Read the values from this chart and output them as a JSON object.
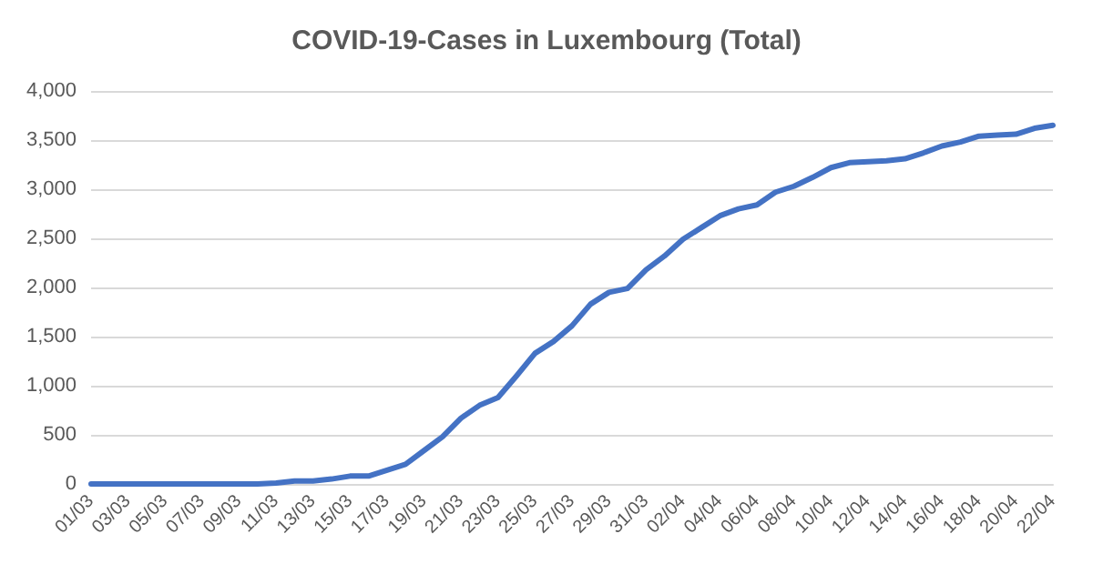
{
  "chart_data": {
    "type": "line",
    "title": "COVID-19-Cases in Luxembourg (Total)",
    "categories": [
      "01/03",
      null,
      "03/03",
      null,
      "05/03",
      null,
      "07/03",
      null,
      "09/03",
      null,
      "11/03",
      null,
      "13/03",
      null,
      "15/03",
      null,
      "17/03",
      null,
      "19/03",
      null,
      "21/03",
      null,
      "23/03",
      null,
      "25/03",
      null,
      "27/03",
      null,
      "29/03",
      null,
      "31/03",
      null,
      "02/04",
      null,
      "04/04",
      null,
      "06/04",
      null,
      "08/04",
      null,
      "10/04",
      null,
      "12/04",
      null,
      "14/04",
      null,
      "16/04",
      null,
      "18/04",
      null,
      "20/04",
      null,
      "22/04"
    ],
    "series": [
      {
        "color": "#4472c4",
        "values": [
          0,
          0,
          0,
          0,
          0,
          0,
          0,
          0,
          0,
          0,
          10,
          30,
          30,
          50,
          80,
          80,
          140,
          200,
          340,
          480,
          670,
          800,
          880,
          1100,
          1330,
          1450,
          1610,
          1830,
          1950,
          1990,
          2180,
          2320,
          2490,
          2610,
          2730,
          2800,
          2840,
          2970,
          3030,
          3120,
          3220,
          3270,
          3280,
          3290,
          3310,
          3370,
          3440,
          3480,
          3540,
          3550,
          3560,
          3620,
          3650
        ]
      }
    ],
    "ylim": [
      0,
      4000
    ],
    "yticks": [
      0,
      500,
      {
        "value": 1000,
        "label": "1,000"
      },
      {
        "value": 1500,
        "label": "1,500"
      },
      {
        "value": 2000,
        "label": "2,000"
      },
      {
        "value": 2500,
        "label": "2,500"
      },
      {
        "value": 3000,
        "label": "3,000"
      },
      {
        "value": 3500,
        "label": "3,500"
      },
      {
        "value": 4000,
        "label": "4,000"
      }
    ],
    "grid": "y",
    "marker": "none",
    "line_style": "solid"
  }
}
